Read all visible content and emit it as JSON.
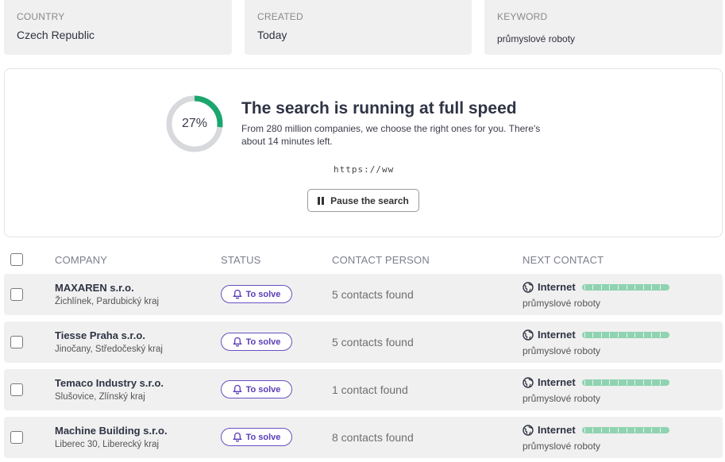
{
  "filters": [
    {
      "label": "COUNTRY",
      "value": "Czech Republic"
    },
    {
      "label": "CREATED",
      "value": "Today"
    },
    {
      "label": "KEYWORD",
      "value": "průmyslové roboty"
    }
  ],
  "progress": {
    "percent_label": "27%",
    "percent": 0.27,
    "title": "The search is running at full speed",
    "description": "From 280 million companies, we choose the right ones for you. There's about 14 minutes left.",
    "current_url": "https://ww",
    "pause_label": "Pause the search",
    "accent_color": "#1aa66e"
  },
  "table": {
    "headers": {
      "company": "COMPANY",
      "status": "STATUS",
      "contact": "CONTACT PERSON",
      "next": "NEXT CONTACT"
    },
    "rows": [
      {
        "company": "MAXAREN s.r.o.",
        "location": "Žichlínek, Pardubický kraj",
        "status": "To solve",
        "contacts": "5 contacts found",
        "next_channel": "Internet",
        "next_keyword": "průmyslové roboty"
      },
      {
        "company": "Tiesse Praha s.r.o.",
        "location": "Jinočany, Středočeský kraj",
        "status": "To solve",
        "contacts": "5 contacts found",
        "next_channel": "Internet",
        "next_keyword": "průmyslové roboty"
      },
      {
        "company": "Temaco Industry s.r.o.",
        "location": "Slušovice, Zlínský kraj",
        "status": "To solve",
        "contacts": "1 contact found",
        "next_channel": "Internet",
        "next_keyword": "průmyslové roboty"
      },
      {
        "company": "Machine Building s.r.o.",
        "location": "Liberec 30, Liberecký kraj",
        "status": "To solve",
        "contacts": "8 contacts found",
        "next_channel": "Internet",
        "next_keyword": "průmyslové roboty"
      }
    ]
  },
  "icons": {
    "status": "bell-icon",
    "next": "globe-icon",
    "pause": "pause-icon"
  },
  "colors": {
    "status_purple": "#5a3db8",
    "bar_green": "#8fd3b1"
  }
}
